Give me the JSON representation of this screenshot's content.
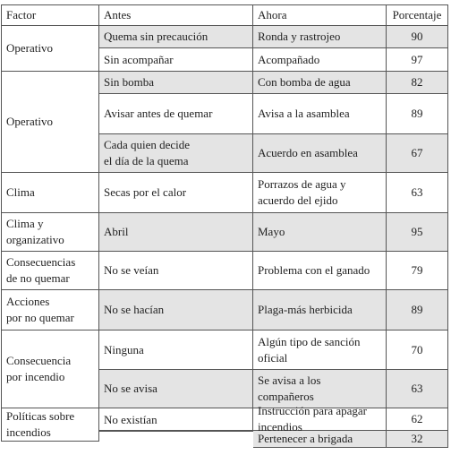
{
  "table": {
    "header": [
      "Factor",
      "Antes",
      "Ahora",
      "Porcentaje"
    ],
    "groups": [
      {
        "factor": "Operativo",
        "rows": [
          {
            "antes": "Quema sin precaución",
            "ahora": "Ronda y rastrojeo",
            "porcentaje": 90
          },
          {
            "antes": "Sin acompañar",
            "ahora": "Acompañado",
            "porcentaje": 97
          }
        ]
      },
      {
        "factor": "Operativo",
        "rows": [
          {
            "antes": "Sin bomba",
            "ahora": "Con bomba de agua",
            "porcentaje": 82
          },
          {
            "antes": "Avisar antes de quemar",
            "ahora": "Avisa a la asamblea",
            "porcentaje": 89
          },
          {
            "antes": "Cada quien decide\nel día de la quema",
            "ahora": "Acuerdo en asamblea",
            "porcentaje": 67
          }
        ]
      },
      {
        "factor": "Clima",
        "rows": [
          {
            "antes": "Secas por el calor",
            "ahora": "Porrazos de agua y\nacuerdo del ejido",
            "porcentaje": 63
          }
        ]
      },
      {
        "factor": "Clima y\norganizativo",
        "rows": [
          {
            "antes": "Abril",
            "ahora": "Mayo",
            "porcentaje": 95
          }
        ]
      },
      {
        "factor": "Consecuencias\nde no quemar",
        "rows": [
          {
            "antes": "No se veían",
            "ahora": "Problema con el ganado",
            "porcentaje": 79
          }
        ]
      },
      {
        "factor": "Acciones\npor no quemar",
        "rows": [
          {
            "antes": "No se hacían",
            "ahora": "Plaga-más herbicida",
            "porcentaje": 89
          }
        ]
      },
      {
        "factor": "Consecuencia\npor incendio",
        "rows": [
          {
            "antes": "Ninguna",
            "ahora": "Algún tipo de sanción\noficial",
            "porcentaje": 70
          },
          {
            "antes": "No se avisa",
            "ahora": "Se avisa a los\ncompañeros",
            "porcentaje": 63
          }
        ]
      },
      {
        "factor": "Políticas sobre\nincendios",
        "rows": [
          {
            "antes": "No existían",
            "ahora": "Instrucción para apagar\nincendios",
            "porcentaje": 62
          },
          {
            "ahora": "Pertenecer a brigada",
            "porcentaje": 32
          }
        ]
      }
    ]
  }
}
